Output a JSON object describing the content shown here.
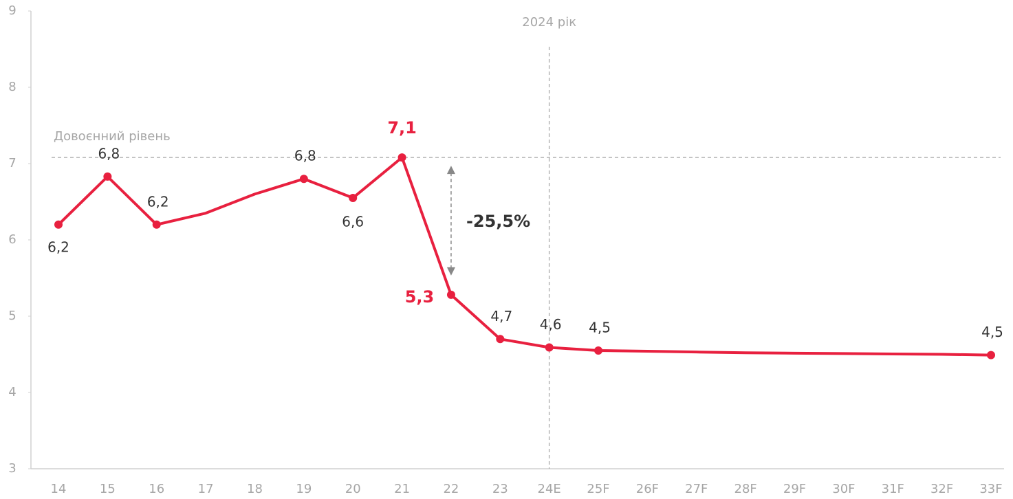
{
  "chart_data": {
    "type": "line",
    "categories": [
      "14",
      "15",
      "16",
      "17",
      "18",
      "19",
      "20",
      "21",
      "22",
      "23",
      "24E",
      "25F",
      "26F",
      "27F",
      "28F",
      "29F",
      "30F",
      "31F",
      "32F",
      "33F"
    ],
    "series": [
      {
        "name": null,
        "color": "#e8203f",
        "values": [
          6.2,
          6.83,
          6.2,
          6.35,
          6.6,
          6.8,
          6.55,
          7.08,
          5.28,
          4.7,
          4.59,
          4.55,
          4.54,
          4.53,
          4.52,
          4.515,
          4.51,
          4.505,
          4.5,
          4.49
        ],
        "value_labels": [
          "6,2",
          "6,8",
          "6,2",
          null,
          null,
          "6,8",
          "6,6",
          "7,1",
          "5,3",
          "4,7",
          "4,6",
          "4,5",
          null,
          null,
          null,
          null,
          null,
          null,
          null,
          "4,5"
        ]
      }
    ],
    "ylim": [
      3,
      9
    ],
    "yticks": [
      3,
      4,
      5,
      6,
      7,
      8,
      9
    ],
    "grid": false,
    "reference_line": {
      "value": 7.08,
      "label": "Довоєнний рівень"
    },
    "vertical_line": {
      "category": "24E",
      "label": "2024 рік"
    },
    "change_annotation": {
      "label": "-25,5%"
    }
  }
}
